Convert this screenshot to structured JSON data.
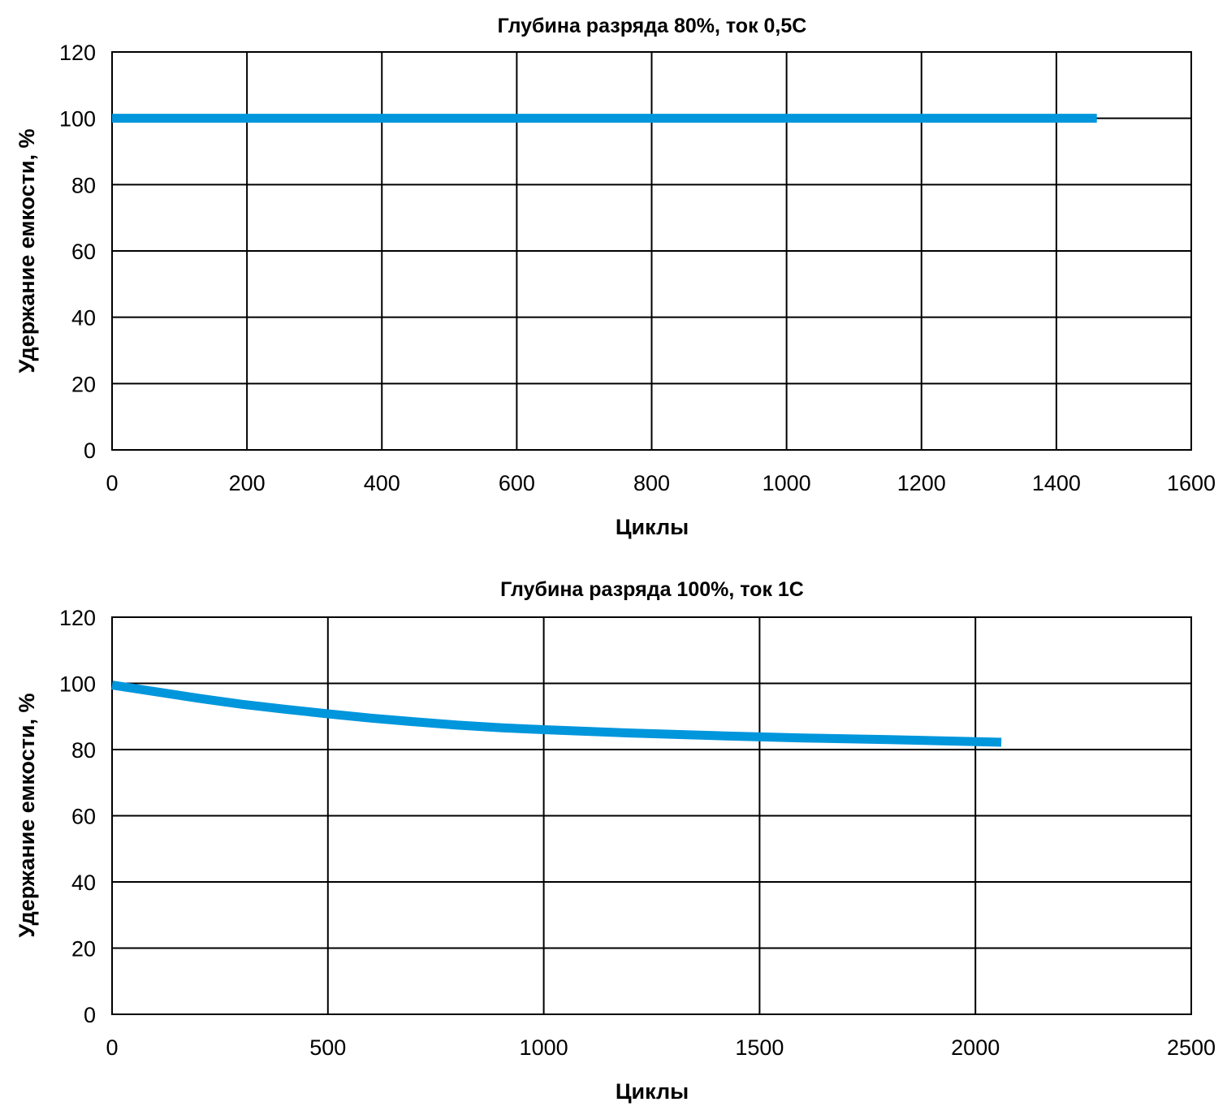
{
  "series_color": "#0096DC",
  "chart_data": [
    {
      "type": "line",
      "title": "Глубина разряда 80%, ток 0,5С",
      "xlabel": "Циклы",
      "ylabel": "Удержание емкости, %",
      "xlim": [
        0,
        1600
      ],
      "ylim": [
        0,
        120
      ],
      "xticks": [
        0,
        200,
        400,
        600,
        800,
        1000,
        1200,
        1400,
        1600
      ],
      "yticks": [
        0,
        20,
        40,
        60,
        80,
        100,
        120
      ],
      "grid": true,
      "series": [
        {
          "x": [
            0,
            200,
            400,
            600,
            800,
            1000,
            1200,
            1400,
            1460
          ],
          "y": [
            100,
            100,
            100,
            100,
            100,
            100,
            100,
            100,
            100
          ]
        }
      ]
    },
    {
      "type": "line",
      "title": "Глубина разряда 100%, ток 1С",
      "xlabel": "Циклы",
      "ylabel": "Удержание емкости, %",
      "xlim": [
        0,
        2500
      ],
      "ylim": [
        0,
        120
      ],
      "xticks": [
        0,
        500,
        1000,
        1500,
        2000,
        2500
      ],
      "yticks": [
        0,
        20,
        40,
        60,
        80,
        100,
        120
      ],
      "grid": true,
      "series": [
        {
          "x": [
            0,
            100,
            200,
            300,
            400,
            500,
            600,
            700,
            800,
            900,
            1000,
            1200,
            1400,
            1600,
            1800,
            2000,
            2060
          ],
          "y": [
            99.5,
            97.5,
            95.5,
            93.7,
            92.2,
            90.8,
            89.5,
            88.4,
            87.4,
            86.6,
            86.0,
            85.0,
            84.2,
            83.5,
            83.0,
            82.4,
            82.2
          ]
        }
      ]
    }
  ]
}
